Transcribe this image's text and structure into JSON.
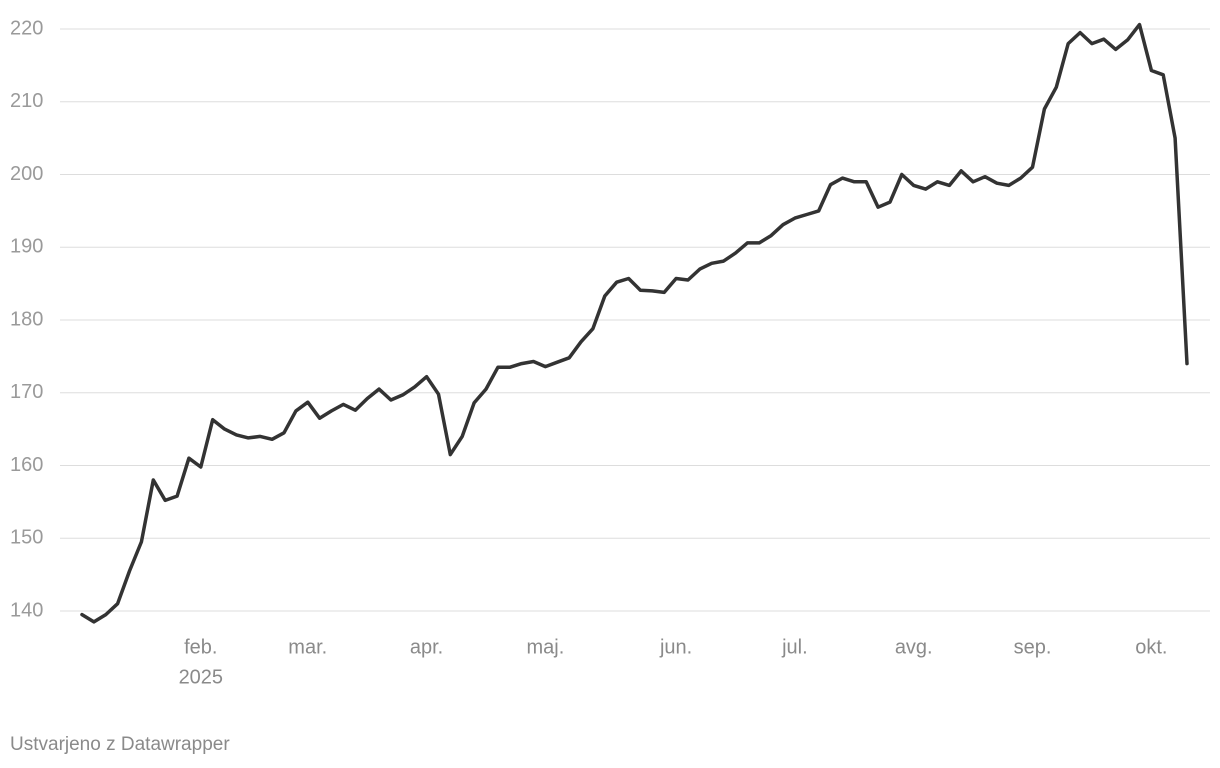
{
  "chart_data": {
    "type": "line",
    "categories": [
      null,
      null,
      null,
      null,
      null,
      null,
      null,
      null,
      null,
      null,
      "feb.",
      null,
      null,
      null,
      null,
      null,
      null,
      null,
      null,
      "mar.",
      null,
      null,
      null,
      null,
      null,
      null,
      null,
      null,
      null,
      "apr.",
      null,
      null,
      null,
      null,
      null,
      null,
      null,
      null,
      null,
      "maj.",
      null,
      null,
      null,
      null,
      null,
      null,
      null,
      null,
      null,
      null,
      "jun.",
      null,
      null,
      null,
      null,
      null,
      null,
      null,
      null,
      null,
      "jul.",
      null,
      null,
      null,
      null,
      null,
      null,
      null,
      null,
      null,
      "avg.",
      null,
      null,
      null,
      null,
      null,
      null,
      null,
      null,
      null,
      "sep.",
      null,
      null,
      null,
      null,
      null,
      null,
      null,
      null,
      null,
      "okt.",
      null,
      null,
      null
    ],
    "year_label": "2025",
    "values": [
      139.5,
      138.5,
      139.5,
      141,
      145.5,
      149.5,
      158,
      155.2,
      155.8,
      161,
      159.8,
      166.3,
      165,
      164.2,
      163.8,
      164,
      163.6,
      164.5,
      167.5,
      168.7,
      166.5,
      167.5,
      168.4,
      167.6,
      169.2,
      170.5,
      169,
      169.7,
      170.8,
      172.2,
      169.8,
      161.5,
      164,
      168.6,
      170.5,
      173.5,
      173.5,
      174,
      174.3,
      173.6,
      174.2,
      174.8,
      177,
      178.8,
      183.3,
      185.2,
      185.7,
      184.1,
      184,
      183.8,
      185.7,
      185.5,
      187,
      187.8,
      188.1,
      189.2,
      190.6,
      190.6,
      191.6,
      193.1,
      194,
      194.5,
      195,
      198.6,
      199.5,
      199,
      199,
      195.5,
      196.2,
      200,
      198.5,
      198,
      199,
      198.5,
      200.5,
      199,
      199.7,
      198.8,
      198.5,
      199.5,
      201,
      209,
      212,
      218,
      219.5,
      218,
      218.6,
      217.2,
      218.5,
      220.6,
      214.3,
      213.7,
      205,
      174
    ],
    "color": "#333333",
    "ylim": [
      140,
      220
    ],
    "yticks": [
      140,
      150,
      160,
      170,
      180,
      190,
      200,
      210,
      220
    ],
    "grid": true,
    "credit": "Ustvarjeno z Datawrapper"
  }
}
